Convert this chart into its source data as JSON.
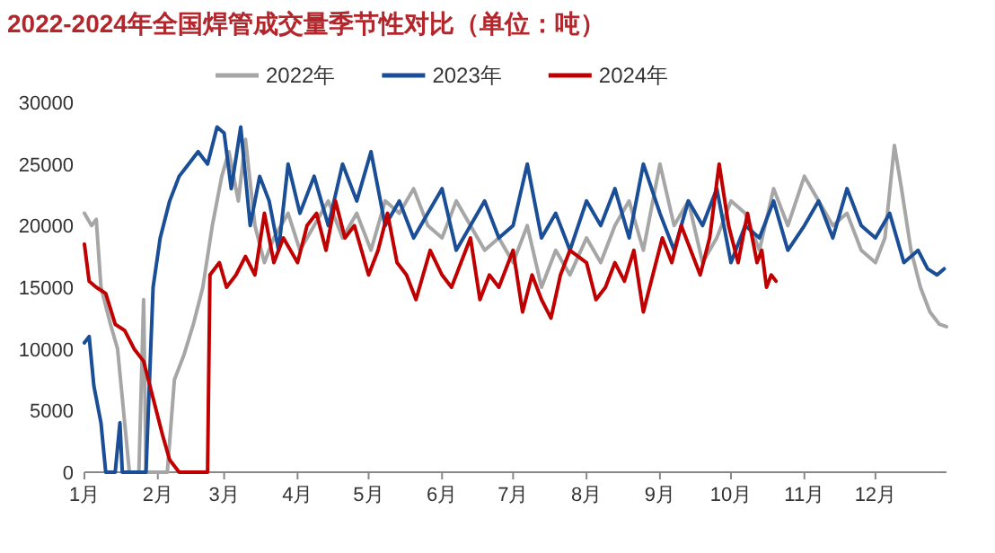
{
  "chart_data": {
    "type": "line",
    "title": "2022-2024年全国焊管成交量季节性对比（单位：吨）",
    "xlim": [
      "--01-01",
      "--12-31"
    ],
    "xticks": [
      {
        "value": "--01-01",
        "label": "1月"
      },
      {
        "value": "--02-01",
        "label": "2月"
      },
      {
        "value": "--03-01",
        "label": "3月"
      },
      {
        "value": "--04-01",
        "label": "4月"
      },
      {
        "value": "--05-01",
        "label": "5月"
      },
      {
        "value": "--06-01",
        "label": "6月"
      },
      {
        "value": "--07-01",
        "label": "7月"
      },
      {
        "value": "--08-01",
        "label": "8月"
      },
      {
        "value": "--09-01",
        "label": "9月"
      },
      {
        "value": "--10-01",
        "label": "10月"
      },
      {
        "value": "--11-01",
        "label": "11月"
      },
      {
        "value": "--12-01",
        "label": "12月"
      }
    ],
    "ylim": [
      0,
      30000
    ],
    "yticks": [
      0,
      5000,
      10000,
      15000,
      20000,
      25000,
      30000
    ],
    "grid": false,
    "legend": "top",
    "marker": "none",
    "line_style": "solid",
    "series": [
      {
        "name": "2022年",
        "color": "#a6a6a6",
        "x": [
          "--01-01",
          "--01-04",
          "--01-06",
          "--01-08",
          "--01-12",
          "--01-15",
          "--01-18",
          "--01-20",
          "--01-24",
          "--01-26",
          "--01-27",
          "--02-05",
          "--02-08",
          "--02-12",
          "--02-16",
          "--02-20",
          "--02-24",
          "--02-28",
          "--03-03",
          "--03-07",
          "--03-10",
          "--03-14",
          "--03-18",
          "--03-22",
          "--03-28",
          "--04-02",
          "--04-08",
          "--04-14",
          "--04-20",
          "--04-26",
          "--05-02",
          "--05-08",
          "--05-14",
          "--05-20",
          "--05-26",
          "--06-01",
          "--06-07",
          "--06-13",
          "--06-19",
          "--06-25",
          "--07-01",
          "--07-07",
          "--07-13",
          "--07-19",
          "--07-25",
          "--08-01",
          "--08-07",
          "--08-13",
          "--08-19",
          "--08-25",
          "--09-01",
          "--09-07",
          "--09-13",
          "--09-19",
          "--09-25",
          "--10-01",
          "--10-07",
          "--10-13",
          "--10-19",
          "--10-25",
          "--11-01",
          "--11-07",
          "--11-13",
          "--11-19",
          "--11-25",
          "--12-01",
          "--12-05",
          "--12-09",
          "--12-12",
          "--12-16",
          "--12-20",
          "--12-24",
          "--12-28",
          "--12-31"
        ],
        "values": [
          21000,
          20000,
          20500,
          15000,
          12000,
          10000,
          4000,
          0,
          0,
          14000,
          0,
          0,
          7500,
          9500,
          12000,
          15000,
          20000,
          24000,
          26000,
          22000,
          27000,
          20000,
          17000,
          19000,
          21000,
          18000,
          20000,
          22000,
          19000,
          21000,
          18000,
          22000,
          21000,
          23000,
          20000,
          19000,
          22000,
          20000,
          18000,
          19000,
          17000,
          20000,
          15000,
          18000,
          16000,
          19000,
          17000,
          20000,
          22000,
          18000,
          25000,
          20000,
          22000,
          17000,
          19000,
          22000,
          21000,
          18000,
          23000,
          20000,
          24000,
          22000,
          20000,
          21000,
          18000,
          17000,
          19000,
          26500,
          23000,
          18000,
          15000,
          13000,
          12000,
          11800
        ]
      },
      {
        "name": "2023年",
        "color": "#1a4e96",
        "x": [
          "--01-01",
          "--01-03",
          "--01-05",
          "--01-08",
          "--01-10",
          "--01-14",
          "--01-16",
          "--01-17",
          "--01-27",
          "--01-30",
          "--02-02",
          "--02-06",
          "--02-10",
          "--02-14",
          "--02-18",
          "--02-22",
          "--02-26",
          "--03-01",
          "--03-04",
          "--03-08",
          "--03-12",
          "--03-16",
          "--03-20",
          "--03-24",
          "--03-28",
          "--04-02",
          "--04-08",
          "--04-14",
          "--04-20",
          "--04-26",
          "--05-02",
          "--05-08",
          "--05-14",
          "--05-20",
          "--05-26",
          "--06-01",
          "--06-07",
          "--06-13",
          "--06-19",
          "--06-25",
          "--07-01",
          "--07-07",
          "--07-13",
          "--07-19",
          "--07-25",
          "--08-01",
          "--08-07",
          "--08-13",
          "--08-19",
          "--08-25",
          "--09-01",
          "--09-07",
          "--09-13",
          "--09-19",
          "--09-25",
          "--10-01",
          "--10-07",
          "--10-13",
          "--10-19",
          "--10-25",
          "--11-01",
          "--11-07",
          "--11-13",
          "--11-19",
          "--11-25",
          "--12-01",
          "--12-07",
          "--12-13",
          "--12-19",
          "--12-23",
          "--12-27",
          "--12-30"
        ],
        "values": [
          10500,
          11000,
          7000,
          4000,
          0,
          0,
          4000,
          0,
          0,
          15000,
          19000,
          22000,
          24000,
          25000,
          26000,
          25000,
          28000,
          27500,
          23000,
          28000,
          20000,
          24000,
          22000,
          18000,
          25000,
          21000,
          24000,
          20000,
          25000,
          22000,
          26000,
          20000,
          22000,
          19000,
          21000,
          23000,
          18000,
          20000,
          22000,
          19000,
          20000,
          25000,
          19000,
          21000,
          18000,
          22000,
          20000,
          23000,
          19000,
          25000,
          21000,
          18000,
          22000,
          20000,
          23000,
          17000,
          20000,
          19000,
          22000,
          18000,
          20000,
          22000,
          19000,
          23000,
          20000,
          19000,
          21000,
          17000,
          18000,
          16500,
          16000,
          16500
        ]
      },
      {
        "name": "2024年",
        "color": "#c00000",
        "x": [
          "--01-01",
          "--01-03",
          "--01-06",
          "--01-10",
          "--01-14",
          "--01-18",
          "--01-22",
          "--01-26",
          "--01-30",
          "--02-03",
          "--02-06",
          "--02-10",
          "--02-22",
          "--02-23",
          "--02-27",
          "--03-02",
          "--03-06",
          "--03-10",
          "--03-14",
          "--03-18",
          "--03-22",
          "--03-26",
          "--04-01",
          "--04-05",
          "--04-09",
          "--04-13",
          "--04-17",
          "--04-21",
          "--04-25",
          "--05-01",
          "--05-05",
          "--05-09",
          "--05-13",
          "--05-17",
          "--05-21",
          "--05-27",
          "--06-01",
          "--06-05",
          "--06-09",
          "--06-13",
          "--06-17",
          "--06-21",
          "--06-25",
          "--07-01",
          "--07-05",
          "--07-09",
          "--07-13",
          "--07-17",
          "--07-21",
          "--07-25",
          "--08-01",
          "--08-05",
          "--08-09",
          "--08-13",
          "--08-17",
          "--08-21",
          "--08-25",
          "--08-29",
          "--09-02",
          "--09-06",
          "--09-10",
          "--09-14",
          "--09-18",
          "--09-22",
          "--09-26",
          "--09-30",
          "--10-04",
          "--10-08",
          "--10-12",
          "--10-14",
          "--10-16",
          "--10-18",
          "--10-20"
        ],
        "values": [
          18500,
          15500,
          15000,
          14500,
          12000,
          11500,
          10000,
          9000,
          6000,
          3000,
          1000,
          0,
          0,
          16000,
          17000,
          15000,
          16000,
          17500,
          16000,
          21000,
          17000,
          19000,
          17000,
          20000,
          21000,
          18000,
          22000,
          19000,
          20000,
          16000,
          18000,
          21000,
          17000,
          16000,
          14000,
          18000,
          16000,
          15000,
          17000,
          19000,
          14000,
          16000,
          15000,
          18000,
          13000,
          16000,
          14000,
          12500,
          16000,
          18000,
          17000,
          14000,
          15000,
          17000,
          15500,
          18000,
          13000,
          16000,
          19000,
          17000,
          20000,
          18000,
          16000,
          19000,
          25000,
          20000,
          17000,
          21000,
          17000,
          18000,
          15000,
          16000,
          15500
        ]
      }
    ]
  }
}
